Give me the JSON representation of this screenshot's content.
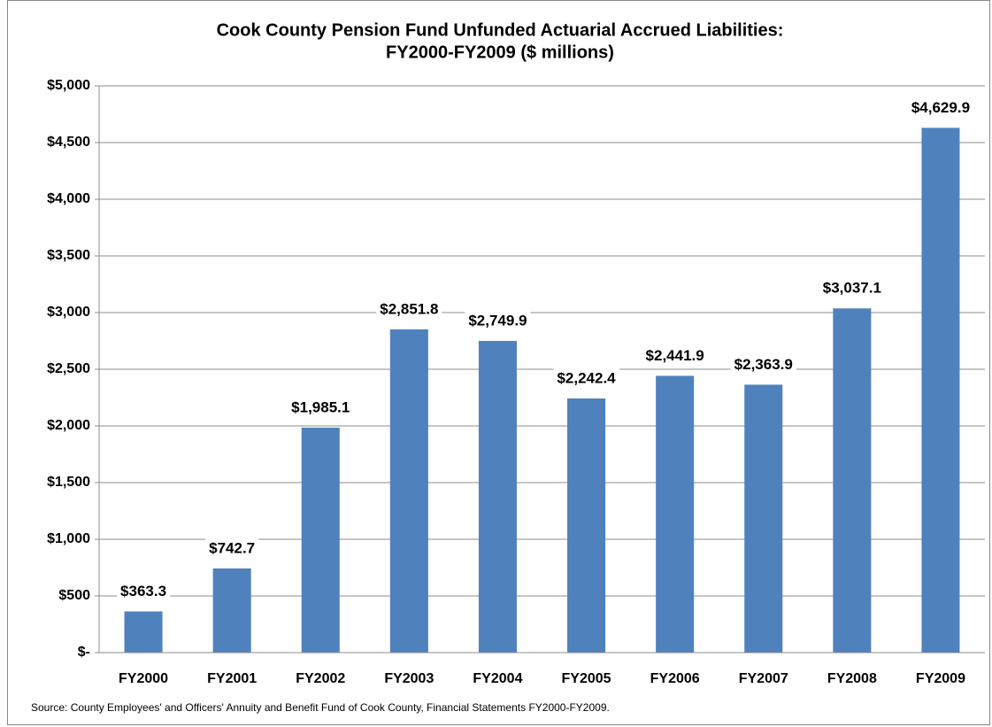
{
  "chart_data": {
    "type": "bar",
    "title": [
      "Cook County Pension Fund Unfunded Actuarial Accrued Liabilities:",
      "FY2000-FY2009 ($ millions)"
    ],
    "categories": [
      "FY2000",
      "FY2001",
      "FY2002",
      "FY2003",
      "FY2004",
      "FY2005",
      "FY2006",
      "FY2007",
      "FY2008",
      "FY2009"
    ],
    "values": [
      363.3,
      742.7,
      1985.1,
      2851.8,
      2749.9,
      2242.4,
      2441.9,
      2363.9,
      3037.1,
      4629.9
    ],
    "value_labels": [
      "$363.3",
      "$742.7",
      "$1,985.1",
      "$2,851.8",
      "$2,749.9",
      "$2,242.4",
      "$2,441.9",
      "$2,363.9",
      "$3,037.1",
      "$4,629.9"
    ],
    "color": "#4f81bd",
    "ylim": [
      0,
      5000
    ],
    "yticks": [
      {
        "value": 0,
        "label": "$-"
      },
      {
        "value": 500,
        "label": "$500"
      },
      {
        "value": 1000,
        "label": "$1,000"
      },
      {
        "value": 1500,
        "label": "$1,500"
      },
      {
        "value": 2000,
        "label": "$2,000"
      },
      {
        "value": 2500,
        "label": "$2,500"
      },
      {
        "value": 3000,
        "label": "$3,000"
      },
      {
        "value": 3500,
        "label": "$3,500"
      },
      {
        "value": 4000,
        "label": "$4,000"
      },
      {
        "value": 4500,
        "label": "$4,500"
      },
      {
        "value": 5000,
        "label": "$5,000"
      }
    ],
    "grid": true,
    "source": "Source: County Employees' and Officers' Annuity and Benefit Fund of Cook County, Financial Statements FY2000-FY2009."
  }
}
